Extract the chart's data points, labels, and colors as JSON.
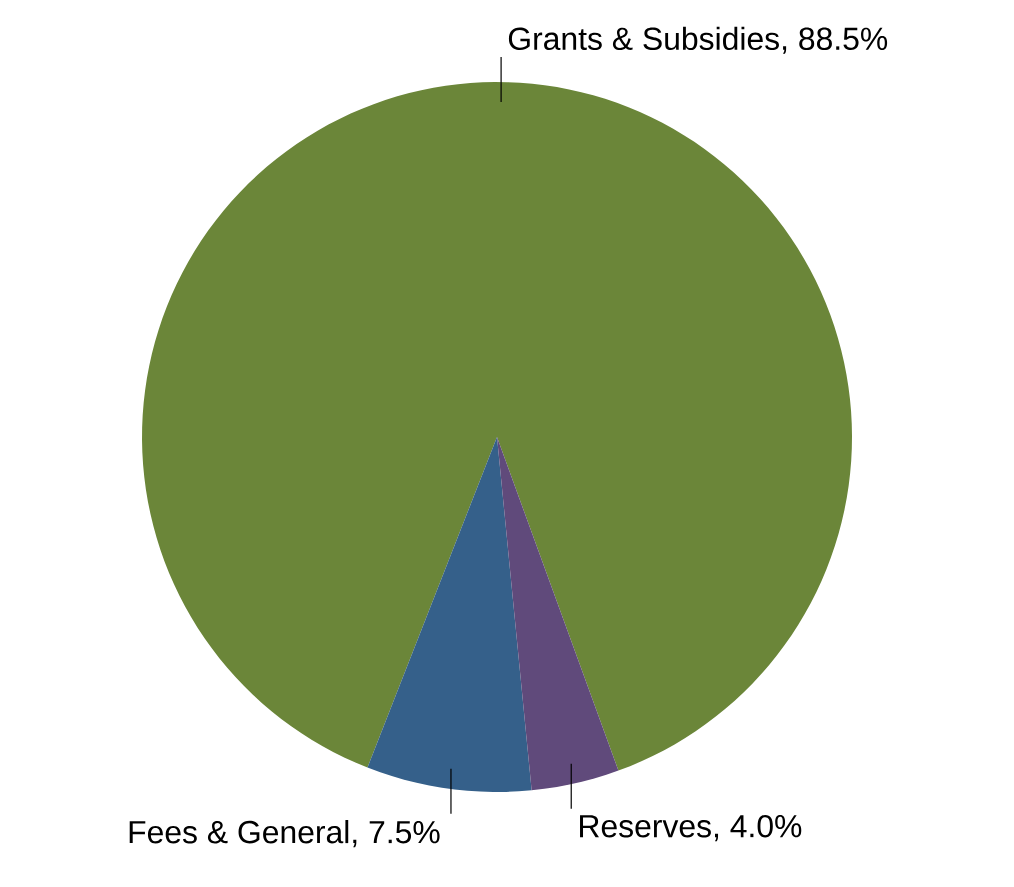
{
  "chart_data": {
    "type": "pie",
    "categories": [
      "Grants & Subsidies, 88.5%",
      "Fees & General, 7.5%",
      "Reserves, 4.0%"
    ],
    "values": [
      88.5,
      7.5,
      4.0
    ],
    "colors": [
      "#6b8639",
      "#35608a",
      "#604a7b"
    ]
  }
}
